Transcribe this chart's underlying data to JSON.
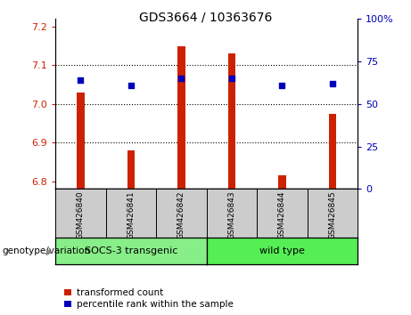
{
  "title": "GDS3664 / 10363676",
  "samples": [
    "GSM426840",
    "GSM426841",
    "GSM426842",
    "GSM426843",
    "GSM426844",
    "GSM426845"
  ],
  "transformed_count": [
    7.03,
    6.88,
    7.15,
    7.13,
    6.815,
    6.975
  ],
  "percentile_rank": [
    64,
    61,
    65,
    65,
    61,
    62
  ],
  "ylim_left": [
    6.78,
    7.22
  ],
  "ylim_right": [
    0,
    100
  ],
  "yticks_left": [
    6.8,
    6.9,
    7.0,
    7.1,
    7.2
  ],
  "yticks_right": [
    0,
    25,
    50,
    75,
    100
  ],
  "bar_color": "#cc2200",
  "dot_color": "#0000bb",
  "bar_width": 0.15,
  "groups": [
    {
      "label": "SOCS-3 transgenic",
      "indices": [
        0,
        1,
        2
      ],
      "color": "#88ee88"
    },
    {
      "label": "wild type",
      "indices": [
        3,
        4,
        5
      ],
      "color": "#55ee55"
    }
  ],
  "sample_box_color": "#cccccc",
  "legend_red_label": "transformed count",
  "legend_blue_label": "percentile rank within the sample",
  "genotype_label": "genotype/variation",
  "left_tick_color": "#cc2200",
  "right_tick_color": "#0000bb",
  "dot_size": 18,
  "hgrid_values": [
    6.9,
    7.0,
    7.1
  ],
  "right_tick_labels": [
    "0",
    "25",
    "50",
    "75",
    "100%"
  ]
}
